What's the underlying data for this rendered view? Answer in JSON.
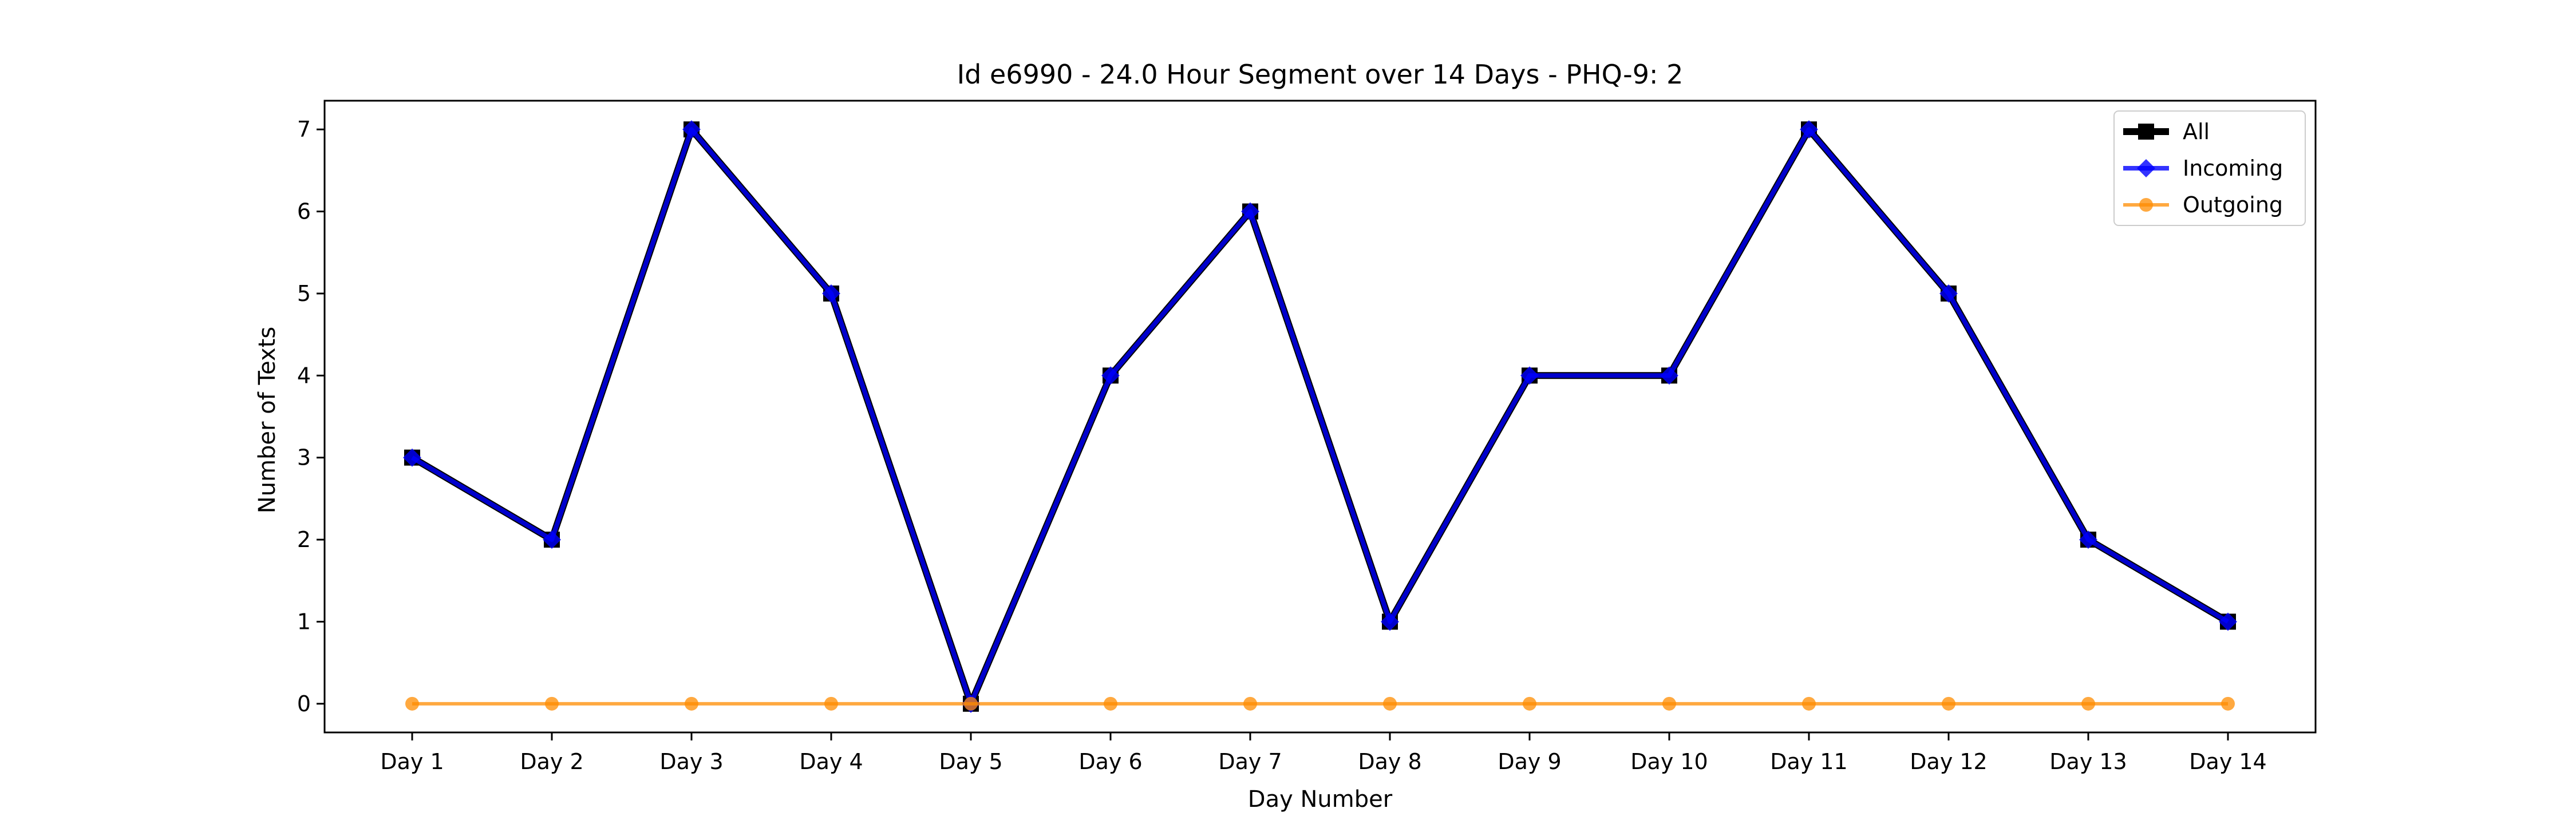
{
  "chart_data": {
    "type": "line",
    "title": "Id e6990 - 24.0 Hour Segment over 14 Days - PHQ-9: 2",
    "xlabel": "Day Number",
    "ylabel": "Number of Texts",
    "categories": [
      "Day 1",
      "Day 2",
      "Day 3",
      "Day 4",
      "Day 5",
      "Day 6",
      "Day 7",
      "Day 8",
      "Day 9",
      "Day 10",
      "Day 11",
      "Day 12",
      "Day 13",
      "Day 14"
    ],
    "ylim": [
      -0.35,
      7.35
    ],
    "yticks": [
      0,
      1,
      2,
      3,
      4,
      5,
      6,
      7
    ],
    "grid": false,
    "legend_position": "top-right",
    "series": [
      {
        "name": "All",
        "color": "#000000",
        "marker": "square",
        "values": [
          3,
          2,
          7,
          5,
          0,
          4,
          6,
          1,
          4,
          4,
          7,
          5,
          2,
          1
        ]
      },
      {
        "name": "Incoming",
        "color": "#0000ff",
        "marker": "diamond",
        "values": [
          3,
          2,
          7,
          5,
          0,
          4,
          6,
          1,
          4,
          4,
          7,
          5,
          2,
          1
        ]
      },
      {
        "name": "Outgoing",
        "color": "#ff8c00",
        "marker": "circle",
        "values": [
          0,
          0,
          0,
          0,
          0,
          0,
          0,
          0,
          0,
          0,
          0,
          0,
          0,
          0
        ]
      }
    ]
  }
}
